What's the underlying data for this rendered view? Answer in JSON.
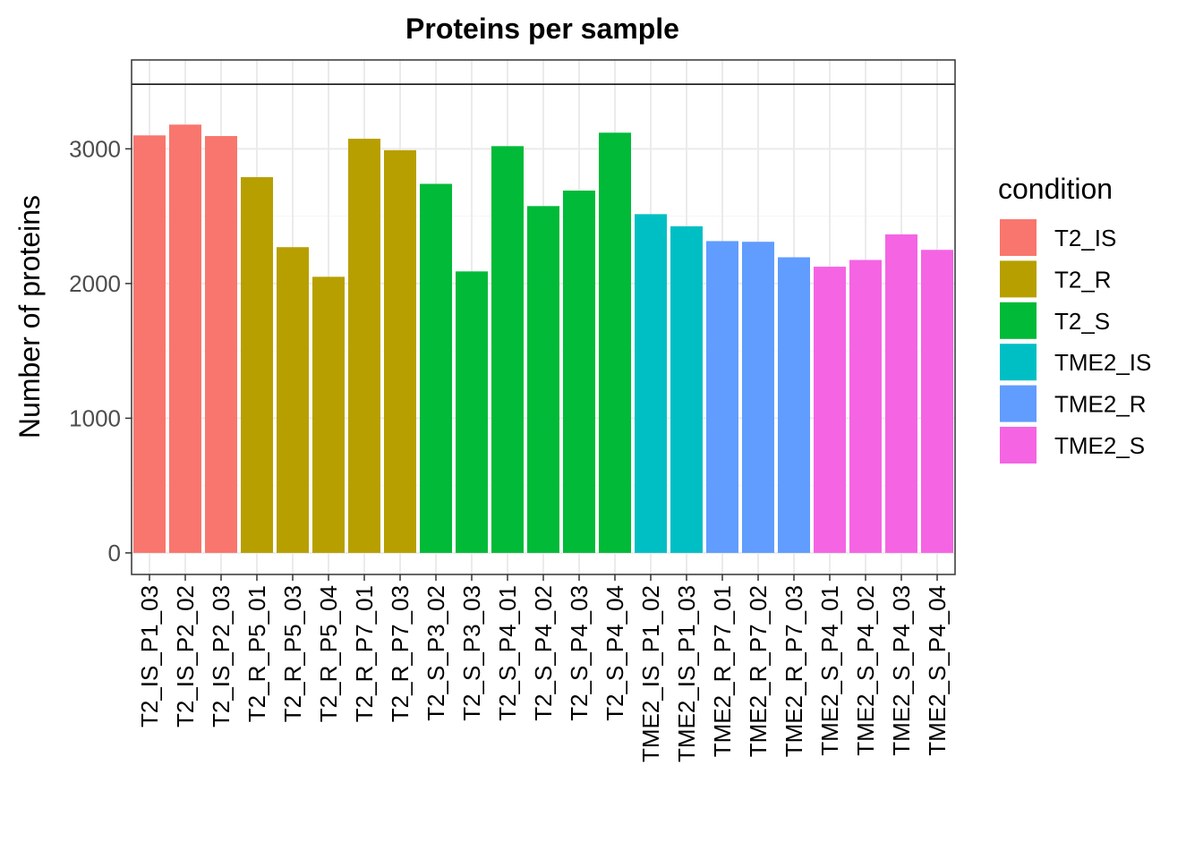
{
  "chart_data": {
    "type": "bar",
    "title": "Proteins per sample",
    "xlabel": "",
    "ylabel": "Number of proteins",
    "ylim": [
      -160,
      3660
    ],
    "yticks": [
      0,
      1000,
      2000,
      3000
    ],
    "reference_line": 3480,
    "grid": true,
    "legend": {
      "title": "condition",
      "position": "right",
      "entries": [
        {
          "name": "T2_IS",
          "color": "#F8766D"
        },
        {
          "name": "T2_R",
          "color": "#B79F00"
        },
        {
          "name": "T2_S",
          "color": "#00BA38"
        },
        {
          "name": "TME2_IS",
          "color": "#00BFC4"
        },
        {
          "name": "TME2_R",
          "color": "#619CFF"
        },
        {
          "name": "TME2_S",
          "color": "#F564E3"
        }
      ]
    },
    "categories": [
      "T2_IS_P1_03",
      "T2_IS_P2_02",
      "T2_IS_P2_03",
      "T2_R_P5_01",
      "T2_R_P5_03",
      "T2_R_P5_04",
      "T2_R_P7_01",
      "T2_R_P7_03",
      "T2_S_P3_02",
      "T2_S_P3_03",
      "T2_S_P4_01",
      "T2_S_P4_02",
      "T2_S_P4_03",
      "T2_S_P4_04",
      "TME2_IS_P1_02",
      "TME2_IS_P1_03",
      "TME2_R_P7_01",
      "TME2_R_P7_02",
      "TME2_R_P7_03",
      "TME2_S_P4_01",
      "TME2_S_P4_02",
      "TME2_S_P4_03",
      "TME2_S_P4_04"
    ],
    "values": [
      3100,
      3180,
      3095,
      2790,
      2270,
      2050,
      3075,
      2990,
      2740,
      2090,
      3020,
      2575,
      2690,
      3120,
      2515,
      2425,
      2315,
      2310,
      2195,
      2125,
      2175,
      2365,
      2250
    ],
    "conditions": [
      "T2_IS",
      "T2_IS",
      "T2_IS",
      "T2_R",
      "T2_R",
      "T2_R",
      "T2_R",
      "T2_R",
      "T2_S",
      "T2_S",
      "T2_S",
      "T2_S",
      "T2_S",
      "T2_S",
      "TME2_IS",
      "TME2_IS",
      "TME2_R",
      "TME2_R",
      "TME2_R",
      "TME2_S",
      "TME2_S",
      "TME2_S",
      "TME2_S"
    ]
  }
}
